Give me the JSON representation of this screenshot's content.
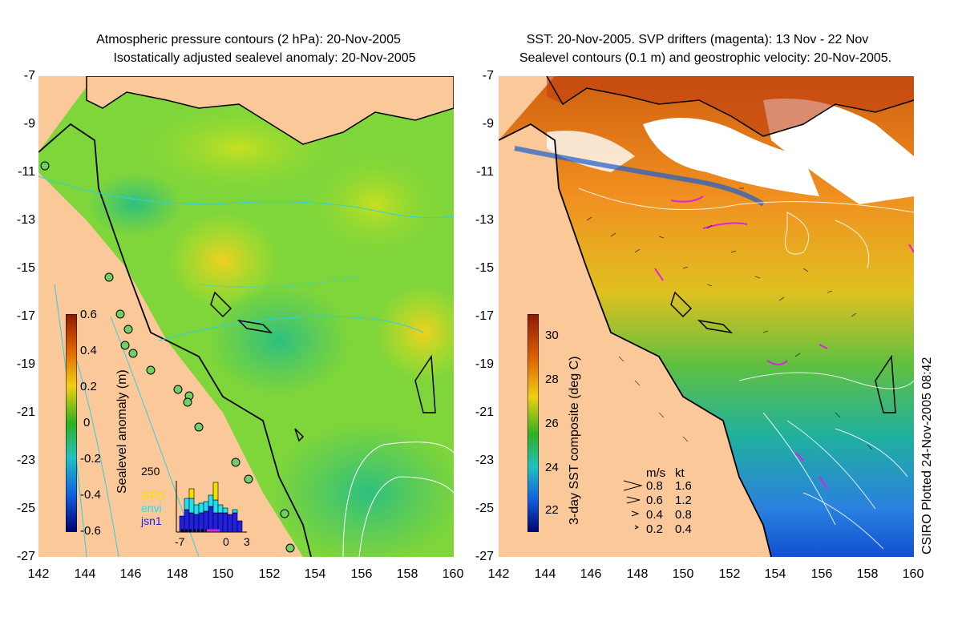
{
  "left_panel": {
    "title_line1": "Atmospheric pressure contours (2 hPa): 20-Nov-2005",
    "title_line2": "Isostatically adjusted sealevel anomaly: 20-Nov-2005",
    "colorbar_label": "Sealevel anomaly (m)",
    "colorbar_ticks": [
      "0.6",
      "0.4",
      "0.2",
      "0",
      "-0.2",
      "-0.4",
      "-0.6"
    ],
    "histogram": {
      "ymax_label": "250",
      "legend": [
        "GFO",
        "envi",
        "jsn1"
      ],
      "legend_colors": [
        "#f0e000",
        "#20e0f0",
        "#2020e0"
      ],
      "x_ticks": [
        "-7",
        "0",
        "3"
      ]
    }
  },
  "right_panel": {
    "title_line1": "SST: 20-Nov-2005. SVP drifters (magenta): 13 Nov - 22 Nov",
    "title_line2": "Sealevel contours (0.1 m) and geostrophic velocity: 20-Nov-2005.",
    "colorbar_label": "3-day SST composite (deg C)",
    "colorbar_ticks": [
      "30",
      "28",
      "26",
      "24",
      "22"
    ],
    "speed_legend": {
      "header_ms": "m/s",
      "header_kt": "kt",
      "rows": [
        {
          "ms": "0.8",
          "kt": "1.6"
        },
        {
          "ms": "0.6",
          "kt": "1.2"
        },
        {
          "ms": "0.4",
          "kt": "0.8"
        },
        {
          "ms": "0.2",
          "kt": "0.4"
        }
      ]
    }
  },
  "y_ticks": [
    "-7",
    "-9",
    "-11",
    "-13",
    "-15",
    "-17",
    "-19",
    "-21",
    "-23",
    "-25",
    "-27"
  ],
  "x_ticks": [
    "142",
    "144",
    "146",
    "148",
    "150",
    "152",
    "154",
    "156",
    "158",
    "160"
  ],
  "credit": "CSIRO Plotted 24-Nov-2005 08:42",
  "colors": {
    "land": "#fbc89a",
    "sla_mid": "#7fd63a",
    "sst_warm": "#f0a020",
    "sst_cool": "#2aa0e0"
  }
}
